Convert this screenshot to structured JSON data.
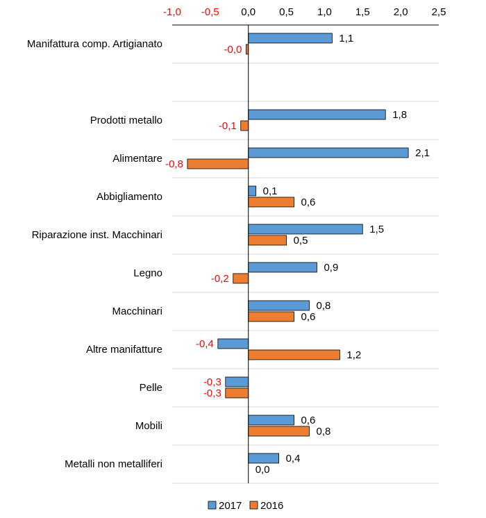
{
  "chart_data": {
    "type": "bar",
    "orientation": "horizontal",
    "title": "",
    "xlabel": "",
    "ylabel": "",
    "xlim": [
      -1.0,
      2.5
    ],
    "x_ticks": [
      -1.0,
      -0.5,
      0.0,
      0.5,
      1.0,
      1.5,
      2.0,
      2.5
    ],
    "x_tick_labels": [
      "-1,0",
      "-0,5",
      "0,0",
      "0,5",
      "1,0",
      "1,5",
      "2,0",
      "2,5"
    ],
    "grid": "horizontal separators between categories",
    "legend_position": "bottom",
    "categories": [
      "Manifattura comp. Artigianato",
      "",
      "Prodotti metallo",
      "Alimentare",
      "Abbigliamento",
      "Riparazione inst. Macchinari",
      "Legno",
      "Macchinari",
      "Altre manifatture",
      "Pelle",
      "Mobili",
      "Metalli non metalliferi"
    ],
    "series": [
      {
        "name": "2017",
        "color": "#5B9BD5",
        "values": [
          1.1,
          null,
          1.8,
          2.1,
          0.1,
          1.5,
          0.9,
          0.8,
          -0.4,
          -0.3,
          0.6,
          0.4
        ],
        "labels": [
          "1,1",
          "",
          "1,8",
          "2,1",
          "0,1",
          "1,5",
          "0,9",
          "0,8",
          "-0,4",
          "-0,3",
          "0,6",
          "0,4"
        ]
      },
      {
        "name": "2016",
        "color": "#ED7D31",
        "values": [
          -0.03,
          null,
          -0.1,
          -0.8,
          0.6,
          0.5,
          -0.2,
          0.6,
          1.2,
          -0.3,
          0.8,
          0.0
        ],
        "labels": [
          "-0,0",
          "",
          "-0,1",
          "-0,8",
          "0,6",
          "0,5",
          "-0,2",
          "0,6",
          "1,2",
          "-0,3",
          "0,8",
          "0,0"
        ]
      }
    ],
    "colors": {
      "negative_label": "#FF0000",
      "positive_label": "#000000",
      "bar_outline": "#000000"
    }
  }
}
